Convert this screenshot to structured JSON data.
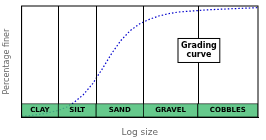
{
  "chart_data": {
    "type": "line",
    "xlabel": "Log size",
    "ylabel": "Percentage finer",
    "x": [
      0.0,
      0.04,
      0.09,
      0.155,
      0.19,
      0.22,
      0.26,
      0.3,
      0.34,
      0.38,
      0.42,
      0.46,
      0.5,
      0.54,
      0.58,
      0.62,
      0.66,
      0.72,
      0.78,
      0.85,
      0.92,
      1.0
    ],
    "values": [
      0.01,
      0.015,
      0.03,
      0.06,
      0.09,
      0.13,
      0.2,
      0.3,
      0.43,
      0.57,
      0.69,
      0.78,
      0.84,
      0.88,
      0.91,
      0.93,
      0.945,
      0.955,
      0.965,
      0.972,
      0.978,
      0.985
    ],
    "color": "#0000CC",
    "line_style": "dotted",
    "xlim": [
      0,
      1
    ],
    "ylim": [
      0,
      1
    ],
    "tick_labels": false,
    "grid": false,
    "bands": [
      {
        "label": "CLAY",
        "from": 0.0,
        "to": 0.155
      },
      {
        "label": "SILT",
        "from": 0.155,
        "to": 0.315
      },
      {
        "label": "SAND",
        "from": 0.315,
        "to": 0.515
      },
      {
        "label": "GRAVEL",
        "from": 0.515,
        "to": 0.745
      },
      {
        "label": "COBBLES",
        "from": 0.745,
        "to": 1.0
      }
    ],
    "annotations": [
      {
        "text": "Grading\ncurve",
        "x": 0.75,
        "y": 0.6
      }
    ]
  }
}
